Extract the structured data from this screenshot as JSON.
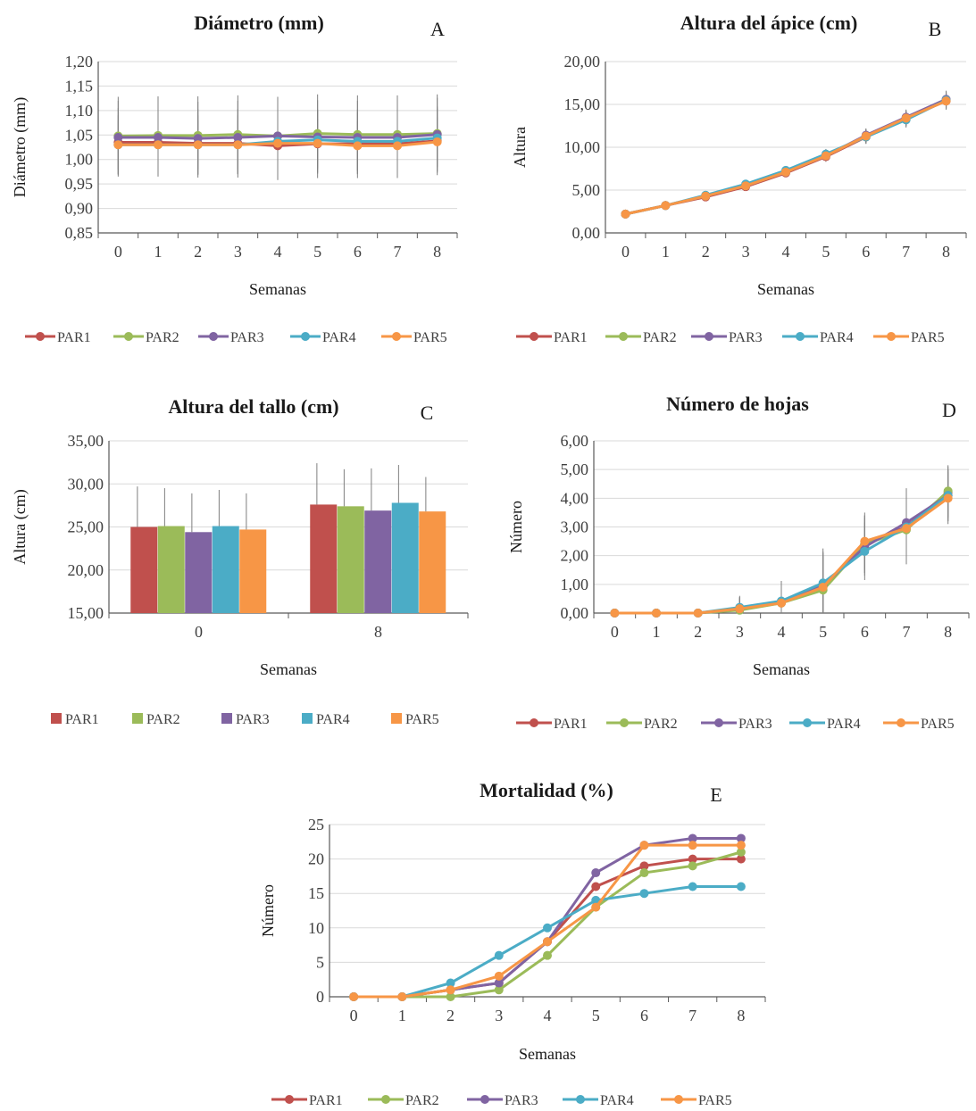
{
  "series_colors": {
    "PAR1": "#c0504d",
    "PAR2": "#9bbb59",
    "PAR3": "#8064a2",
    "PAR4": "#4bacc6",
    "PAR5": "#f79646"
  },
  "chart_data": [
    {
      "id": "A",
      "type": "line",
      "title": "Diámetro (mm)",
      "panel_letter": "A",
      "xlabel": "Semanas",
      "ylabel": "Diámetro  (mm)",
      "ylim": [
        0.85,
        1.2
      ],
      "y_step": 0.05,
      "y_ticks": [
        "0,85",
        "0,90",
        "0,95",
        "1,00",
        "1,05",
        "1,10",
        "1,15",
        "1,20"
      ],
      "x": [
        "0",
        "1",
        "2",
        "3",
        "4",
        "5",
        "6",
        "7",
        "8"
      ],
      "error_bars": true,
      "legend_position": "bottom",
      "series": [
        {
          "name": "PAR1",
          "values": [
            1.035,
            1.035,
            1.033,
            1.033,
            1.028,
            1.032,
            1.032,
            1.032,
            1.038
          ],
          "error": [
            0.07,
            0.07,
            0.07,
            0.07,
            0.07,
            0.07,
            0.07,
            0.07,
            0.07
          ]
        },
        {
          "name": "PAR2",
          "values": [
            1.048,
            1.049,
            1.049,
            1.051,
            1.048,
            1.053,
            1.051,
            1.051,
            1.053
          ],
          "error": [
            0.08,
            0.08,
            0.08,
            0.08,
            0.08,
            0.08,
            0.08,
            0.08,
            0.08
          ]
        },
        {
          "name": "PAR3",
          "values": [
            1.045,
            1.045,
            1.043,
            1.045,
            1.048,
            1.046,
            1.045,
            1.045,
            1.051
          ],
          "error": [
            0.075,
            0.075,
            0.075,
            0.075,
            0.075,
            0.075,
            0.075,
            0.075,
            0.075
          ]
        },
        {
          "name": "PAR4",
          "values": [
            1.03,
            1.03,
            1.03,
            1.03,
            1.037,
            1.04,
            1.037,
            1.037,
            1.044
          ],
          "error": [
            0.06,
            0.06,
            0.06,
            0.06,
            0.06,
            0.06,
            0.06,
            0.06,
            0.06
          ]
        },
        {
          "name": "PAR5",
          "values": [
            1.03,
            1.03,
            1.03,
            1.03,
            1.033,
            1.033,
            1.028,
            1.028,
            1.036
          ],
          "error": [
            0.05,
            0.05,
            0.05,
            0.05,
            0.05,
            0.05,
            0.05,
            0.05,
            0.05
          ]
        }
      ]
    },
    {
      "id": "B",
      "type": "line",
      "title": "Altura  del ápice (cm)",
      "panel_letter": "B",
      "xlabel": "Semanas",
      "ylabel": "Altura",
      "ylim": [
        0,
        20
      ],
      "y_step": 5,
      "y_ticks": [
        "0,00",
        "5,00",
        "10,00",
        "15,00",
        "20,00"
      ],
      "x": [
        "0",
        "1",
        "2",
        "3",
        "4",
        "5",
        "6",
        "7",
        "8"
      ],
      "error_bars": true,
      "legend_position": "bottom",
      "series": [
        {
          "name": "PAR1",
          "values": [
            2.2,
            3.2,
            4.2,
            5.4,
            7.0,
            8.9,
            11.2,
            13.4,
            15.4
          ],
          "error": [
            0.3,
            0.3,
            0.35,
            0.4,
            0.5,
            0.6,
            0.8,
            0.9,
            1.0
          ]
        },
        {
          "name": "PAR2",
          "values": [
            2.2,
            3.2,
            4.3,
            5.5,
            7.1,
            9.0,
            11.3,
            13.3,
            15.5
          ],
          "error": [
            0.3,
            0.3,
            0.35,
            0.4,
            0.5,
            0.6,
            0.8,
            0.9,
            1.0
          ]
        },
        {
          "name": "PAR3",
          "values": [
            2.2,
            3.2,
            4.3,
            5.5,
            7.1,
            9.0,
            11.4,
            13.5,
            15.6
          ],
          "error": [
            0.3,
            0.3,
            0.35,
            0.4,
            0.5,
            0.6,
            0.8,
            0.9,
            1.0
          ]
        },
        {
          "name": "PAR4",
          "values": [
            2.2,
            3.2,
            4.4,
            5.7,
            7.3,
            9.2,
            11.2,
            13.2,
            15.5
          ],
          "error": [
            0.3,
            0.3,
            0.35,
            0.4,
            0.5,
            0.6,
            0.8,
            0.9,
            1.0
          ]
        },
        {
          "name": "PAR5",
          "values": [
            2.2,
            3.2,
            4.3,
            5.5,
            7.1,
            9.0,
            11.3,
            13.4,
            15.4
          ],
          "error": [
            0.3,
            0.3,
            0.35,
            0.4,
            0.5,
            0.6,
            0.8,
            0.9,
            1.0
          ]
        }
      ]
    },
    {
      "id": "C",
      "type": "bar",
      "title": "Altura  del tallo (cm)",
      "panel_letter": "C",
      "xlabel": "Semanas",
      "ylabel": "Altura  (cm)",
      "ylim": [
        15,
        35
      ],
      "y_step": 5,
      "y_ticks": [
        "15,00",
        "20,00",
        "25,00",
        "30,00",
        "35,00"
      ],
      "categories": [
        "0",
        "8"
      ],
      "error_bars": true,
      "legend_position": "bottom",
      "series": [
        {
          "name": "PAR1",
          "values": [
            25.0,
            27.6
          ],
          "error": [
            4.7,
            4.8
          ]
        },
        {
          "name": "PAR2",
          "values": [
            25.1,
            27.4
          ],
          "error": [
            4.4,
            4.3
          ]
        },
        {
          "name": "PAR3",
          "values": [
            24.4,
            26.9
          ],
          "error": [
            4.5,
            4.9
          ]
        },
        {
          "name": "PAR4",
          "values": [
            25.1,
            27.8
          ],
          "error": [
            4.2,
            4.4
          ]
        },
        {
          "name": "PAR5",
          "values": [
            24.7,
            26.8
          ],
          "error": [
            4.2,
            4.0
          ]
        }
      ]
    },
    {
      "id": "D",
      "type": "line",
      "title": "Número de hojas",
      "panel_letter": "D",
      "xlabel": "Semanas",
      "ylabel": "Número",
      "ylim": [
        0,
        6
      ],
      "y_step": 1,
      "y_ticks": [
        "0,00",
        "1,00",
        "2,00",
        "3,00",
        "4,00",
        "5,00",
        "6,00"
      ],
      "x": [
        "0",
        "1",
        "2",
        "3",
        "4",
        "5",
        "6",
        "7",
        "8"
      ],
      "error_bars": true,
      "legend_position": "bottom",
      "series": [
        {
          "name": "PAR1",
          "values": [
            0,
            0,
            0,
            0.15,
            0.35,
            0.9,
            2.4,
            3.0,
            4.2
          ],
          "error": [
            0,
            0,
            0,
            0.4,
            0.7,
            1.2,
            1.0,
            1.2,
            0.9
          ]
        },
        {
          "name": "PAR2",
          "values": [
            0,
            0,
            0,
            0.1,
            0.35,
            0.8,
            2.4,
            2.9,
            4.25
          ],
          "error": [
            0,
            0,
            0,
            0.4,
            0.7,
            1.2,
            1.0,
            1.2,
            0.9
          ]
        },
        {
          "name": "PAR3",
          "values": [
            0,
            0,
            0,
            0.15,
            0.4,
            0.95,
            2.3,
            3.15,
            4.1
          ],
          "error": [
            0,
            0,
            0,
            0.4,
            0.7,
            1.2,
            1.0,
            1.2,
            0.9
          ]
        },
        {
          "name": "PAR4",
          "values": [
            0,
            0,
            0,
            0.2,
            0.42,
            1.05,
            2.15,
            3.0,
            4.1
          ],
          "error": [
            0,
            0,
            0,
            0.4,
            0.7,
            1.2,
            1.0,
            1.2,
            0.9
          ]
        },
        {
          "name": "PAR5",
          "values": [
            0,
            0,
            0,
            0.15,
            0.35,
            0.9,
            2.5,
            2.95,
            4.0
          ],
          "error": [
            0,
            0,
            0,
            0.4,
            0.7,
            1.2,
            1.0,
            1.2,
            0.9
          ]
        }
      ]
    },
    {
      "id": "E",
      "type": "line",
      "title": "Mortalidad (%)",
      "panel_letter": "E",
      "xlabel": "Semanas",
      "ylabel": "Número",
      "ylim": [
        0,
        25
      ],
      "y_step": 5,
      "y_ticks": [
        "0",
        "5",
        "10",
        "15",
        "20",
        "25"
      ],
      "x": [
        "0",
        "1",
        "2",
        "3",
        "4",
        "5",
        "6",
        "7",
        "8"
      ],
      "error_bars": false,
      "legend_position": "bottom",
      "series": [
        {
          "name": "PAR1",
          "values": [
            0,
            0,
            1,
            2,
            8,
            16,
            19,
            20,
            20
          ]
        },
        {
          "name": "PAR2",
          "values": [
            0,
            0,
            0,
            1,
            6,
            13,
            18,
            19,
            21
          ]
        },
        {
          "name": "PAR3",
          "values": [
            0,
            0,
            1,
            2,
            8,
            18,
            22,
            23,
            23
          ]
        },
        {
          "name": "PAR4",
          "values": [
            0,
            0,
            2,
            6,
            10,
            14,
            15,
            16,
            16
          ]
        },
        {
          "name": "PAR5",
          "values": [
            0,
            0,
            1,
            3,
            8,
            13,
            22,
            22,
            22
          ]
        }
      ]
    }
  ]
}
